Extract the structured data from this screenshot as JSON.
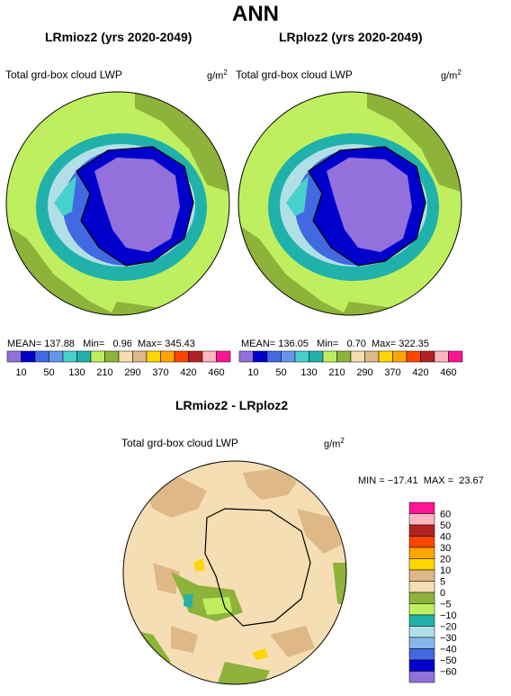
{
  "page_title": "ANN",
  "panels": [
    {
      "title": "LRmioz2 (yrs 2020-2049)",
      "variable": "Total grd-box cloud LWP",
      "units_base": "g/m",
      "units_exp": "2",
      "stats": {
        "mean_label": "MEAN=",
        "mean": "137.88",
        "min_label": "Min=",
        "min": "0.96",
        "max_label": "Max=",
        "max": "345.43"
      }
    },
    {
      "title": "LRploz2 (yrs 2020-2049)",
      "variable": "Total grd-box cloud LWP",
      "units_base": "g/m",
      "units_exp": "2",
      "stats": {
        "mean_label": "MEAN=",
        "mean": "136.05",
        "min_label": "Min=",
        "min": "0.70",
        "max_label": "Max=",
        "max": "322.35"
      }
    }
  ],
  "abs_colorbar": {
    "colors": [
      "#9370db",
      "#0000cd",
      "#4169e1",
      "#6495ed",
      "#48d1cc",
      "#20b2aa",
      "#bfef5f",
      "#8db33a",
      "#f5deb3",
      "#deb887",
      "#ffd700",
      "#ffa500",
      "#ff4500",
      "#b22222",
      "#ffb6c1",
      "#ff1493"
    ],
    "labels": [
      "10",
      "50",
      "130",
      "210",
      "290",
      "370",
      "420",
      "460"
    ],
    "label_with_50": [
      "10",
      "50",
      "130",
      "210",
      "290",
      "370",
      "420",
      "460"
    ]
  },
  "abs_labels": [
    "10",
    "50",
    "130",
    "210",
    "290",
    "370",
    "420",
    "460"
  ],
  "diff_panel": {
    "title": "LRmioz2 - LRploz2",
    "variable": "Total grd-box cloud LWP",
    "units_base": "g/m",
    "units_exp": "2",
    "min_label": "MIN =",
    "min": "−17.41",
    "max_label": "MAX =",
    "max": "23.67"
  },
  "diff_colorbar": {
    "labels": [
      "60",
      "50",
      "40",
      "30",
      "20",
      "10",
      "5",
      "0",
      "−5",
      "−10",
      "−20",
      "−30",
      "−40",
      "−50",
      "−60"
    ],
    "colors": [
      "#ff1493",
      "#ffb6c1",
      "#b22222",
      "#ff4500",
      "#ffa500",
      "#ffd700",
      "#deb887",
      "#f5deb3",
      "#8db33a",
      "#bfef5f",
      "#20b2aa",
      "#b0e0e6",
      "#87b6ea",
      "#4169e1",
      "#0000cd",
      "#9370db"
    ]
  },
  "chart_data": [
    {
      "type": "heatmap",
      "title": "LRmioz2 (yrs 2020-2049)",
      "variable": "Total grd-box cloud LWP",
      "units": "g/m2",
      "projection": "south polar stereographic",
      "stats": {
        "mean": 137.88,
        "min": 0.96,
        "max": 345.43
      },
      "colorbar_levels": [
        10,
        50,
        130,
        210,
        290,
        370,
        420,
        460
      ]
    },
    {
      "type": "heatmap",
      "title": "LRploz2 (yrs 2020-2049)",
      "variable": "Total grd-box cloud LWP",
      "units": "g/m2",
      "projection": "south polar stereographic",
      "stats": {
        "mean": 136.05,
        "min": 0.7,
        "max": 322.35
      },
      "colorbar_levels": [
        10,
        50,
        130,
        210,
        290,
        370,
        420,
        460
      ]
    },
    {
      "type": "heatmap",
      "title": "LRmioz2 - LRploz2",
      "variable": "Total grd-box cloud LWP",
      "units": "g/m2",
      "projection": "south polar stereographic",
      "stats": {
        "min": -17.41,
        "max": 23.67
      },
      "colorbar_levels": [
        60,
        50,
        40,
        30,
        20,
        10,
        5,
        0,
        -5,
        -10,
        -20,
        -30,
        -40,
        -50,
        -60
      ]
    }
  ]
}
